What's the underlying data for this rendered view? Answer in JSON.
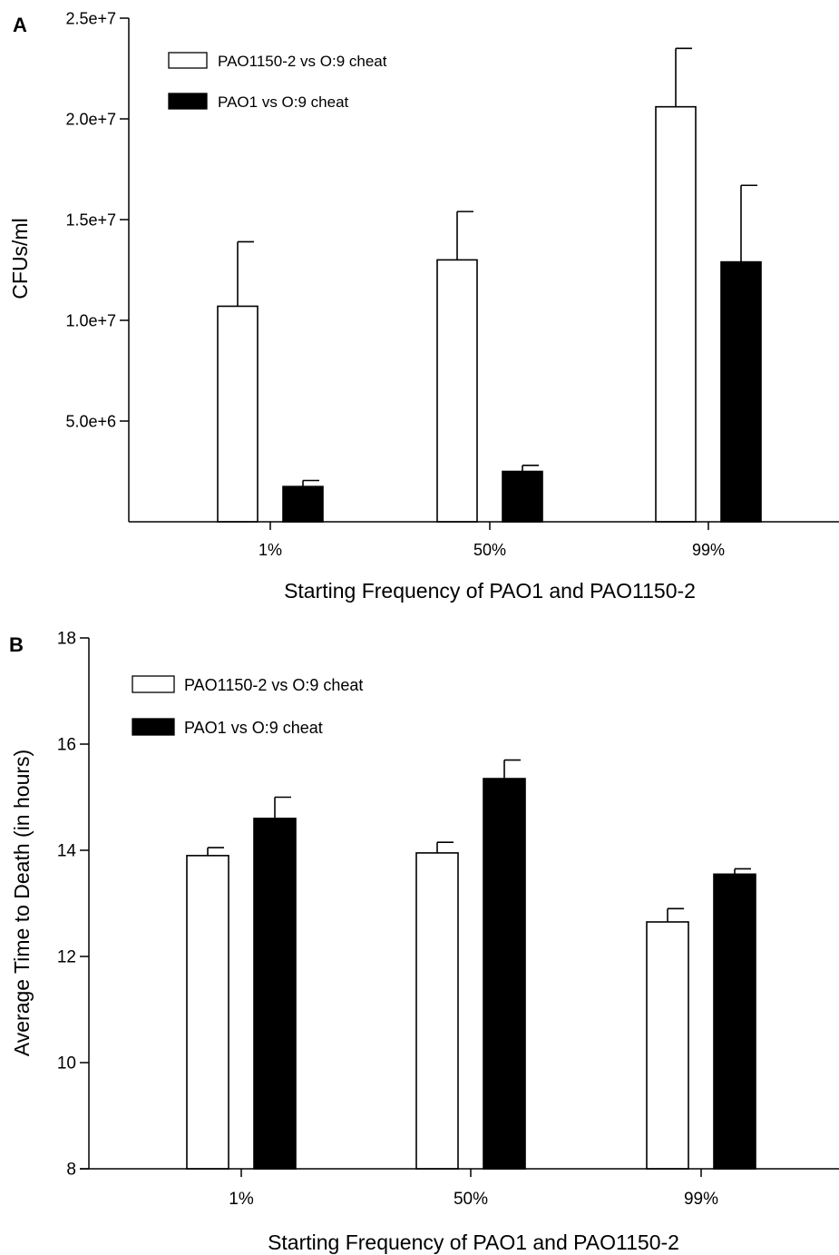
{
  "chart_data": [
    {
      "type": "bar",
      "panel_label": "A",
      "title": "",
      "xlabel": "Starting Frequency of PAO1 and PAO1150-2",
      "ylabel": "CFUs/ml",
      "ylim": [
        0,
        25000000
      ],
      "yticks": [
        5000000,
        10000000,
        15000000,
        20000000,
        25000000
      ],
      "ytick_labels": [
        "5.0e+6",
        "1.0e+7",
        "1.5e+7",
        "2.0e+7",
        "2.5e+7"
      ],
      "categories": [
        "1%",
        "50%",
        "99%"
      ],
      "series": [
        {
          "name": "PAO1150-2 vs O:9 cheat",
          "fill": "#ffffff",
          "values": [
            10700000,
            13000000,
            20600000
          ],
          "errors": [
            3200000,
            2400000,
            2900000
          ]
        },
        {
          "name": "PAO1 vs O:9 cheat",
          "fill": "#000000",
          "values": [
            1750000,
            2500000,
            12900000
          ],
          "errors": [
            300000,
            300000,
            3800000
          ]
        }
      ],
      "legend_position": "top-left",
      "grid": false
    },
    {
      "type": "bar",
      "panel_label": "B",
      "title": "",
      "xlabel": "Starting Frequency of PAO1 and PAO1150-2",
      "ylabel": "Average Time to Death (in hours)",
      "ylim": [
        8,
        18
      ],
      "yticks": [
        8,
        10,
        12,
        14,
        16,
        18
      ],
      "ytick_labels": [
        "8",
        "10",
        "12",
        "14",
        "16",
        "18"
      ],
      "categories": [
        "1%",
        "50%",
        "99%"
      ],
      "series": [
        {
          "name": "PAO1150-2 vs O:9 cheat",
          "fill": "#ffffff",
          "values": [
            13.9,
            13.95,
            12.65
          ],
          "errors": [
            0.15,
            0.2,
            0.25
          ]
        },
        {
          "name": "PAO1 vs O:9 cheat",
          "fill": "#000000",
          "values": [
            14.6,
            15.35,
            13.55
          ],
          "errors": [
            0.4,
            0.35,
            0.1
          ]
        }
      ],
      "legend_position": "top-left",
      "grid": false
    }
  ]
}
